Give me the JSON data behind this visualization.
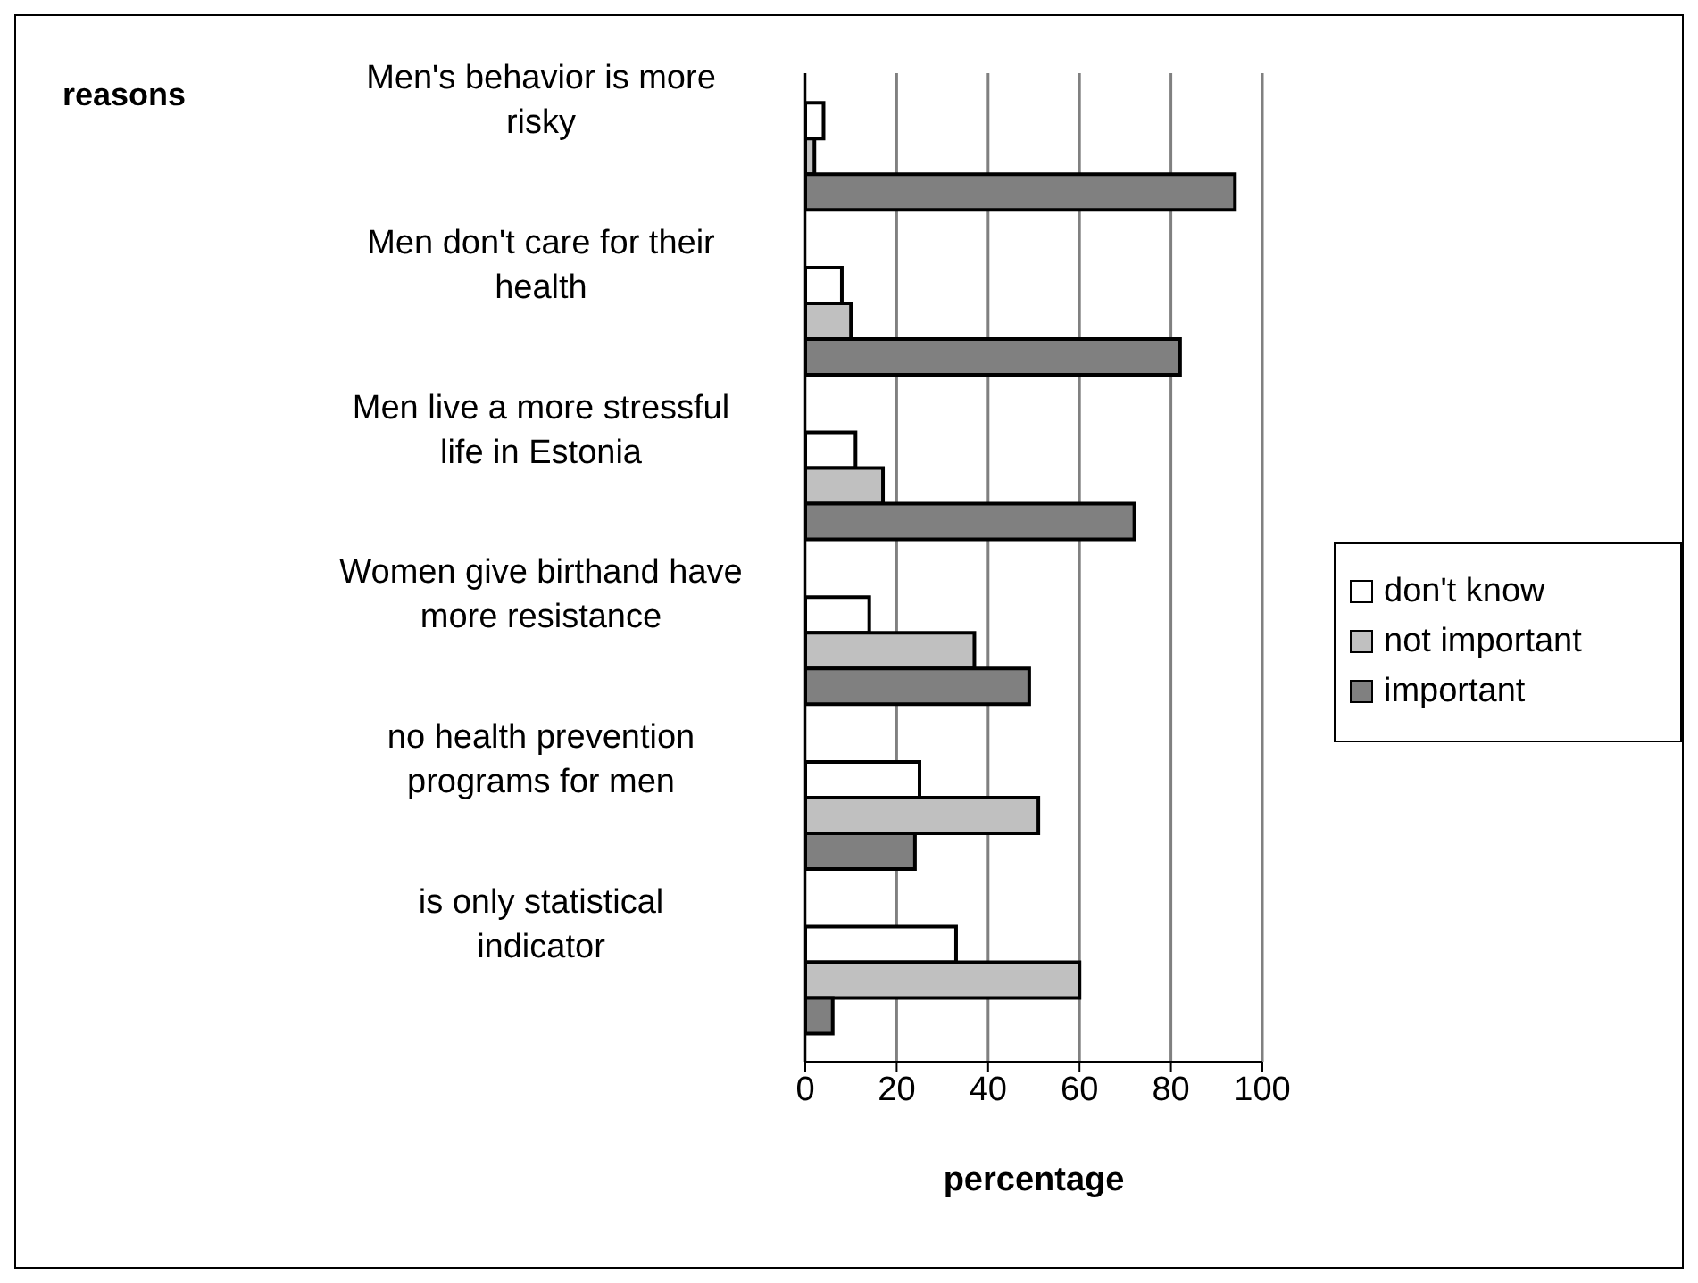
{
  "chart_data": {
    "type": "bar",
    "orientation": "horizontal",
    "ylabel": "reasons",
    "xlabel": "percentage",
    "categories": [
      "Men's behavior is more risky",
      "Men don't care for their health",
      "Men live a more stressful life in Estonia",
      "Women give birthand have more resistance",
      "no health prevention programs for men",
      "is only statistical indicator"
    ],
    "series": [
      {
        "name": "don't know",
        "color": "#ffffff",
        "values": [
          4,
          8,
          11,
          14,
          25,
          33
        ]
      },
      {
        "name": "not important",
        "color": "#c0c0c0",
        "values": [
          2,
          10,
          17,
          37,
          51,
          60
        ]
      },
      {
        "name": "important",
        "color": "#808080",
        "values": [
          94,
          82,
          72,
          49,
          24,
          6
        ]
      }
    ],
    "xlim": [
      0,
      100
    ],
    "xticks": [
      0,
      20,
      40,
      60,
      80,
      100
    ],
    "grid": "x",
    "legend": "right"
  }
}
